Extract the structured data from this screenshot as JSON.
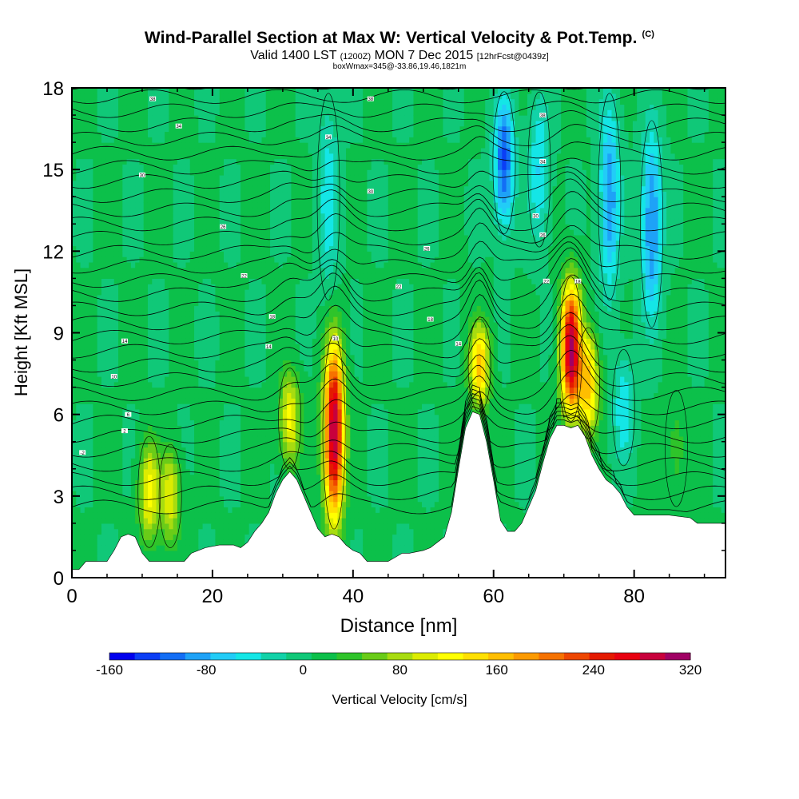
{
  "titles": {
    "main": "Wind-Parallel Section at Max W: Vertical Velocity & Pot.Temp.",
    "main_suffix": "(C)",
    "line2_a": "Valid 1400 LST",
    "line2_b": "(1200Z)",
    "line2_c": "MON 7 Dec 2015",
    "line2_d": "[12hrFcst@0439z]",
    "line3": "boxWmax=345@-33.86,19.46,1821m"
  },
  "chart_data": {
    "type": "heatmap",
    "xlabel": "Distance [nm]",
    "ylabel": "Height [Kft MSL]",
    "xlim": [
      0,
      93
    ],
    "ylim": [
      0,
      18
    ],
    "xticks": [
      0,
      20,
      40,
      60,
      80
    ],
    "yticks": [
      0,
      3,
      6,
      9,
      12,
      15,
      18
    ],
    "colorbar": {
      "label": "Vertical Velocity [cm/s]",
      "ticks": [
        "-160",
        "-80",
        "0",
        "80",
        "160",
        "240",
        "320"
      ],
      "min": -160,
      "max": 320,
      "colors": [
        "#0000ee",
        "#0b3ef5",
        "#136ef5",
        "#1ea2f7",
        "#22ccf7",
        "#14e6e6",
        "#12d2a8",
        "#10c878",
        "#0cc04a",
        "#2fc42a",
        "#6acc18",
        "#a8dc10",
        "#dcec00",
        "#ffff00",
        "#ffe000",
        "#ffbe00",
        "#fc9a00",
        "#f67200",
        "#ee4600",
        "#e41a00",
        "#e80010",
        "#c8003c",
        "#a00064"
      ]
    },
    "terrain": [
      [
        0,
        0.3
      ],
      [
        1,
        0.3
      ],
      [
        2,
        0.6
      ],
      [
        5,
        0.6
      ],
      [
        6,
        1.0
      ],
      [
        7,
        1.5
      ],
      [
        8,
        1.6
      ],
      [
        9,
        1.5
      ],
      [
        10,
        0.9
      ],
      [
        11,
        0.6
      ],
      [
        12,
        0.6
      ],
      [
        16,
        0.6
      ],
      [
        17,
        0.9
      ],
      [
        19,
        1.1
      ],
      [
        21,
        1.2
      ],
      [
        23,
        1.2
      ],
      [
        24,
        1.1
      ],
      [
        25,
        1.3
      ],
      [
        26,
        1.7
      ],
      [
        27,
        2.0
      ],
      [
        28,
        2.4
      ],
      [
        29,
        3.1
      ],
      [
        30,
        3.6
      ],
      [
        31,
        3.9
      ],
      [
        32,
        3.6
      ],
      [
        33,
        3.0
      ],
      [
        34,
        2.4
      ],
      [
        35,
        1.8
      ],
      [
        36,
        1.5
      ],
      [
        37,
        1.6
      ],
      [
        38,
        1.5
      ],
      [
        39,
        1.2
      ],
      [
        40,
        1.0
      ],
      [
        41,
        0.9
      ],
      [
        42,
        0.6
      ],
      [
        45,
        0.6
      ],
      [
        47,
        0.9
      ],
      [
        48,
        0.9
      ],
      [
        50,
        1.0
      ],
      [
        51,
        1.1
      ],
      [
        53,
        1.5
      ],
      [
        54,
        2.4
      ],
      [
        55,
        4.0
      ],
      [
        56,
        5.5
      ],
      [
        57,
        6.1
      ],
      [
        58,
        6.0
      ],
      [
        59,
        5.0
      ],
      [
        60,
        3.6
      ],
      [
        61,
        2.1
      ],
      [
        62,
        1.7
      ],
      [
        63,
        1.7
      ],
      [
        64,
        2.0
      ],
      [
        65,
        2.6
      ],
      [
        66,
        3.2
      ],
      [
        67,
        4.2
      ],
      [
        68,
        5.1
      ],
      [
        69,
        5.6
      ],
      [
        70,
        5.6
      ],
      [
        71,
        5.5
      ],
      [
        72,
        5.6
      ],
      [
        73,
        5.2
      ],
      [
        74,
        4.5
      ],
      [
        75,
        4.0
      ],
      [
        76,
        3.6
      ],
      [
        77,
        3.4
      ],
      [
        78,
        3.1
      ],
      [
        79,
        2.6
      ],
      [
        80,
        2.3
      ],
      [
        84,
        2.3
      ],
      [
        85,
        2.3
      ],
      [
        88,
        2.2
      ],
      [
        89,
        2.0
      ],
      [
        93,
        2.0
      ]
    ],
    "updraft_cores": [
      {
        "x": 37.3,
        "y_bottom": 1.6,
        "y_top": 9.1,
        "peak": 300
      },
      {
        "x": 71.0,
        "y_bottom": 5.6,
        "y_top": 11.2,
        "peak": 290
      },
      {
        "x": 58.0,
        "y_bottom": 6.0,
        "y_top": 9.6,
        "peak": 150
      },
      {
        "x": 31.0,
        "y_bottom": 3.9,
        "y_top": 7.8,
        "peak": 110
      },
      {
        "x": 11.0,
        "y_bottom": 1.0,
        "y_top": 5.3,
        "peak": 110
      },
      {
        "x": 14.0,
        "y_bottom": 1.0,
        "y_top": 5.0,
        "peak": 95
      },
      {
        "x": 73.5,
        "y_bottom": 5.0,
        "y_top": 9.3,
        "peak": 150
      },
      {
        "x": 86.0,
        "y_bottom": 2.5,
        "y_top": 7.0,
        "peak": 30
      }
    ],
    "downdraft_cores": [
      {
        "x": 61.5,
        "y_bottom": 12.5,
        "y_top": 18.0,
        "peak": -130
      },
      {
        "x": 82.5,
        "y_bottom": 9.0,
        "y_top": 17.0,
        "peak": -110
      },
      {
        "x": 76.5,
        "y_bottom": 10.0,
        "y_top": 18.0,
        "peak": -100
      },
      {
        "x": 36.5,
        "y_bottom": 10.0,
        "y_top": 18.0,
        "peak": -55
      },
      {
        "x": 66.5,
        "y_bottom": 12.0,
        "y_top": 18.0,
        "peak": -65
      },
      {
        "x": 78.5,
        "y_bottom": 4.0,
        "y_top": 8.5,
        "peak": -60
      }
    ],
    "theta_labels": [
      {
        "x": 11.5,
        "y": 17.6,
        "text": "38"
      },
      {
        "x": 42.5,
        "y": 17.6,
        "text": "38"
      },
      {
        "x": 67.0,
        "y": 17.0,
        "text": "38"
      },
      {
        "x": 15.2,
        "y": 16.6,
        "text": "34"
      },
      {
        "x": 36.5,
        "y": 16.2,
        "text": "34"
      },
      {
        "x": 67.0,
        "y": 15.3,
        "text": "34"
      },
      {
        "x": 10.0,
        "y": 14.8,
        "text": "30"
      },
      {
        "x": 42.5,
        "y": 14.2,
        "text": "30"
      },
      {
        "x": 66.0,
        "y": 13.3,
        "text": "30"
      },
      {
        "x": 21.5,
        "y": 12.9,
        "text": "26"
      },
      {
        "x": 50.5,
        "y": 12.1,
        "text": "26"
      },
      {
        "x": 67.0,
        "y": 12.6,
        "text": "26"
      },
      {
        "x": 24.5,
        "y": 11.1,
        "text": "22"
      },
      {
        "x": 46.5,
        "y": 10.7,
        "text": "22"
      },
      {
        "x": 67.5,
        "y": 10.9,
        "text": "22"
      },
      {
        "x": 72.0,
        "y": 10.9,
        "text": "18"
      },
      {
        "x": 28.5,
        "y": 9.6,
        "text": "18"
      },
      {
        "x": 51.0,
        "y": 9.5,
        "text": "18"
      },
      {
        "x": 7.5,
        "y": 8.7,
        "text": "14"
      },
      {
        "x": 28.0,
        "y": 8.5,
        "text": "14"
      },
      {
        "x": 55.0,
        "y": 8.6,
        "text": "14"
      },
      {
        "x": 37.5,
        "y": 8.8,
        "text": "10"
      },
      {
        "x": 6.0,
        "y": 7.4,
        "text": "10"
      },
      {
        "x": 8.0,
        "y": 6.0,
        "text": "6"
      },
      {
        "x": 7.5,
        "y": 5.4,
        "text": "2"
      },
      {
        "x": 1.5,
        "y": 4.6,
        "text": "-2"
      }
    ]
  }
}
